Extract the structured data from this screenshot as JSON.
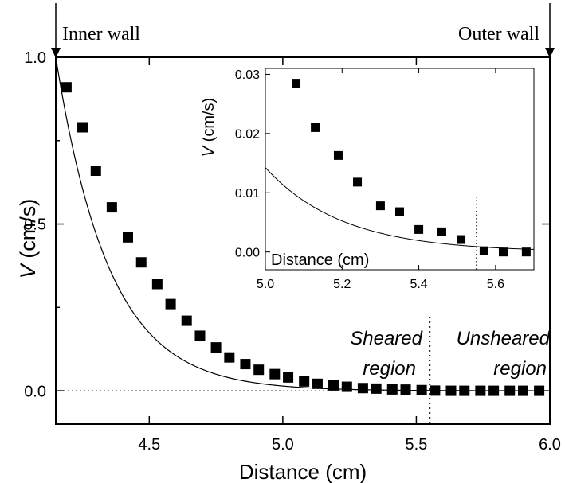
{
  "chart_data": [
    {
      "type": "scatter",
      "ylabel_var": "V",
      "ylabel_unit": " (cm/s)",
      "xlabel": "Distance (cm)",
      "xlim": [
        4.15,
        6.0
      ],
      "ylim": [
        -0.1,
        1.0
      ],
      "x_ticks": [
        4.5,
        5.0,
        5.5,
        6.0
      ],
      "x_tick_labels": [
        "4.5",
        "5.0",
        "5.5",
        "6.0"
      ],
      "y_ticks": [
        0.0,
        0.5,
        1.0
      ],
      "y_tick_labels": [
        "0.0",
        "0.5",
        "1.0"
      ],
      "annotations": {
        "inner_wall": "Inner wall",
        "outer_wall": "Outer wall",
        "sheared_1": "Sheared",
        "sheared_2": "region",
        "unsheared_1": "Unsheared",
        "unsheared_2": "region"
      },
      "boundary_x": 5.55,
      "zero_line": true,
      "series": [
        {
          "marker": "square",
          "x": [
            4.19,
            4.25,
            4.3,
            4.36,
            4.42,
            4.47,
            4.53,
            4.58,
            4.64,
            4.69,
            4.75,
            4.8,
            4.86,
            4.91,
            4.97,
            5.02,
            5.08,
            5.13,
            5.19,
            5.24,
            5.3,
            5.35,
            5.41,
            5.46,
            5.52,
            5.57,
            5.63,
            5.68,
            5.74,
            5.79,
            5.85,
            5.9,
            5.96
          ],
          "y": [
            0.91,
            0.79,
            0.66,
            0.55,
            0.46,
            0.385,
            0.32,
            0.26,
            0.21,
            0.165,
            0.13,
            0.1,
            0.08,
            0.063,
            0.05,
            0.04,
            0.028,
            0.021,
            0.016,
            0.012,
            0.008,
            0.0065,
            0.004,
            0.0035,
            0.002,
            0.0005,
            0.0,
            0.0,
            0.0,
            0.0,
            0.0,
            0.0,
            0.0
          ]
        }
      ],
      "fit_curve": {
        "form": "exponential",
        "amplitude": 1.0,
        "x0": 4.15,
        "decay_length": 0.2,
        "x_max": 6.0
      }
    },
    {
      "type": "scatter",
      "ylabel_var": "V",
      "ylabel_unit": " (cm/s)",
      "xlabel": "Distance (cm)",
      "xlim": [
        5.0,
        5.7
      ],
      "ylim": [
        -0.003,
        0.031
      ],
      "x_ticks": [
        5.0,
        5.2,
        5.4,
        5.6
      ],
      "x_tick_labels": [
        "5.0",
        "5.2",
        "5.4",
        "5.6"
      ],
      "y_ticks": [
        0.0,
        0.01,
        0.02,
        0.03
      ],
      "y_tick_labels": [
        "0.00",
        "0.01",
        "0.02",
        "0.03"
      ],
      "boundary_x": 5.55,
      "series": [
        {
          "marker": "square",
          "x": [
            5.08,
            5.13,
            5.19,
            5.24,
            5.3,
            5.35,
            5.4,
            5.46,
            5.51,
            5.57,
            5.62,
            5.68
          ],
          "y": [
            0.0285,
            0.021,
            0.0163,
            0.0118,
            0.0078,
            0.0068,
            0.0038,
            0.0034,
            0.0021,
            0.0002,
            0.0,
            0.0
          ]
        }
      ],
      "fit_curve": {
        "form": "exponential",
        "amplitude": 1.0,
        "x0": 4.15,
        "decay_length": 0.2,
        "x_max": 5.7
      }
    }
  ]
}
